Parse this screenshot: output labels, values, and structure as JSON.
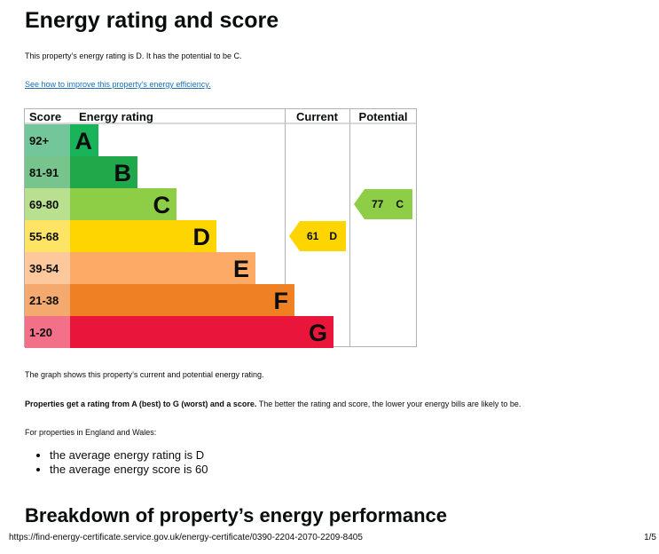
{
  "title": "Energy rating and score",
  "summary": "This property’s energy rating is D. It has the potential to be C.",
  "improve_link": "See how to improve this property’s energy efficiency.",
  "chart_data": {
    "type": "table",
    "headers": {
      "score": "Score",
      "rating": "Energy rating",
      "current": "Current",
      "potential": "Potential"
    },
    "bands": [
      {
        "range": "92+",
        "letter": "A",
        "color": "#19b459",
        "score_bg": "#73c69a",
        "width_frac": 0.19
      },
      {
        "range": "81-91",
        "letter": "B",
        "color": "#20a84b",
        "score_bg": "#77c48c",
        "width_frac": 0.29
      },
      {
        "range": "69-80",
        "letter": "C",
        "color": "#8dce46",
        "score_bg": "#b9e08f",
        "width_frac": 0.39
      },
      {
        "range": "55-68",
        "letter": "D",
        "color": "#ffd500",
        "score_bg": "#fde465",
        "width_frac": 0.49
      },
      {
        "range": "39-54",
        "letter": "E",
        "color": "#fcaa65",
        "score_bg": "#fdc99c",
        "width_frac": 0.59
      },
      {
        "range": "21-38",
        "letter": "F",
        "color": "#ef8023",
        "score_bg": "#f4aa6e",
        "width_frac": 0.69
      },
      {
        "range": "1-20",
        "letter": "G",
        "color": "#e9153b",
        "score_bg": "#f27088",
        "width_frac": 0.79
      }
    ],
    "current": {
      "score": 61,
      "letter": "D"
    },
    "potential": {
      "score": 77,
      "letter": "C"
    }
  },
  "graph_note": "The graph shows this property’s current and potential energy rating.",
  "rating_note_bold": "Properties get a rating from A (best) to G (worst) and a score.",
  "rating_note_rest": " The better the rating and score, the lower your energy bills are likely to be.",
  "region_note": "For properties in England and Wales:",
  "averages": [
    "the average energy rating is D",
    "the average energy score is 60"
  ],
  "breakdown_heading": "Breakdown of property’s energy performance",
  "footer": {
    "url": "https://find-energy-certificate.service.gov.uk/energy-certificate/0390-2204-2070-2209-8405",
    "page": "1/5"
  }
}
